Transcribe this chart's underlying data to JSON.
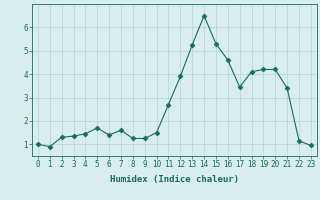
{
  "x": [
    0,
    1,
    2,
    3,
    4,
    5,
    6,
    7,
    8,
    9,
    10,
    11,
    12,
    13,
    14,
    15,
    16,
    17,
    18,
    19,
    20,
    21,
    22,
    23
  ],
  "y": [
    1.0,
    0.9,
    1.3,
    1.35,
    1.45,
    1.7,
    1.4,
    1.6,
    1.25,
    1.25,
    1.5,
    2.7,
    3.9,
    5.25,
    6.5,
    5.3,
    4.6,
    3.45,
    4.1,
    4.2,
    4.2,
    3.4,
    1.15,
    0.95
  ],
  "xlabel": "Humidex (Indice chaleur)",
  "ylim": [
    0.5,
    7.0
  ],
  "xlim": [
    -0.5,
    23.5
  ],
  "yticks": [
    1,
    2,
    3,
    4,
    5,
    6
  ],
  "xticks": [
    0,
    1,
    2,
    3,
    4,
    5,
    6,
    7,
    8,
    9,
    10,
    11,
    12,
    13,
    14,
    15,
    16,
    17,
    18,
    19,
    20,
    21,
    22,
    23
  ],
  "line_color": "#1a6b5a",
  "marker": "D",
  "marker_size": 2.5,
  "bg_color": "#d8eeee",
  "grid_color": "#b8d4d4",
  "axis_color": "#1a6b5a",
  "label_color": "#1a6b5a",
  "tick_label_fontsize": 5.5,
  "xlabel_fontsize": 6.5
}
